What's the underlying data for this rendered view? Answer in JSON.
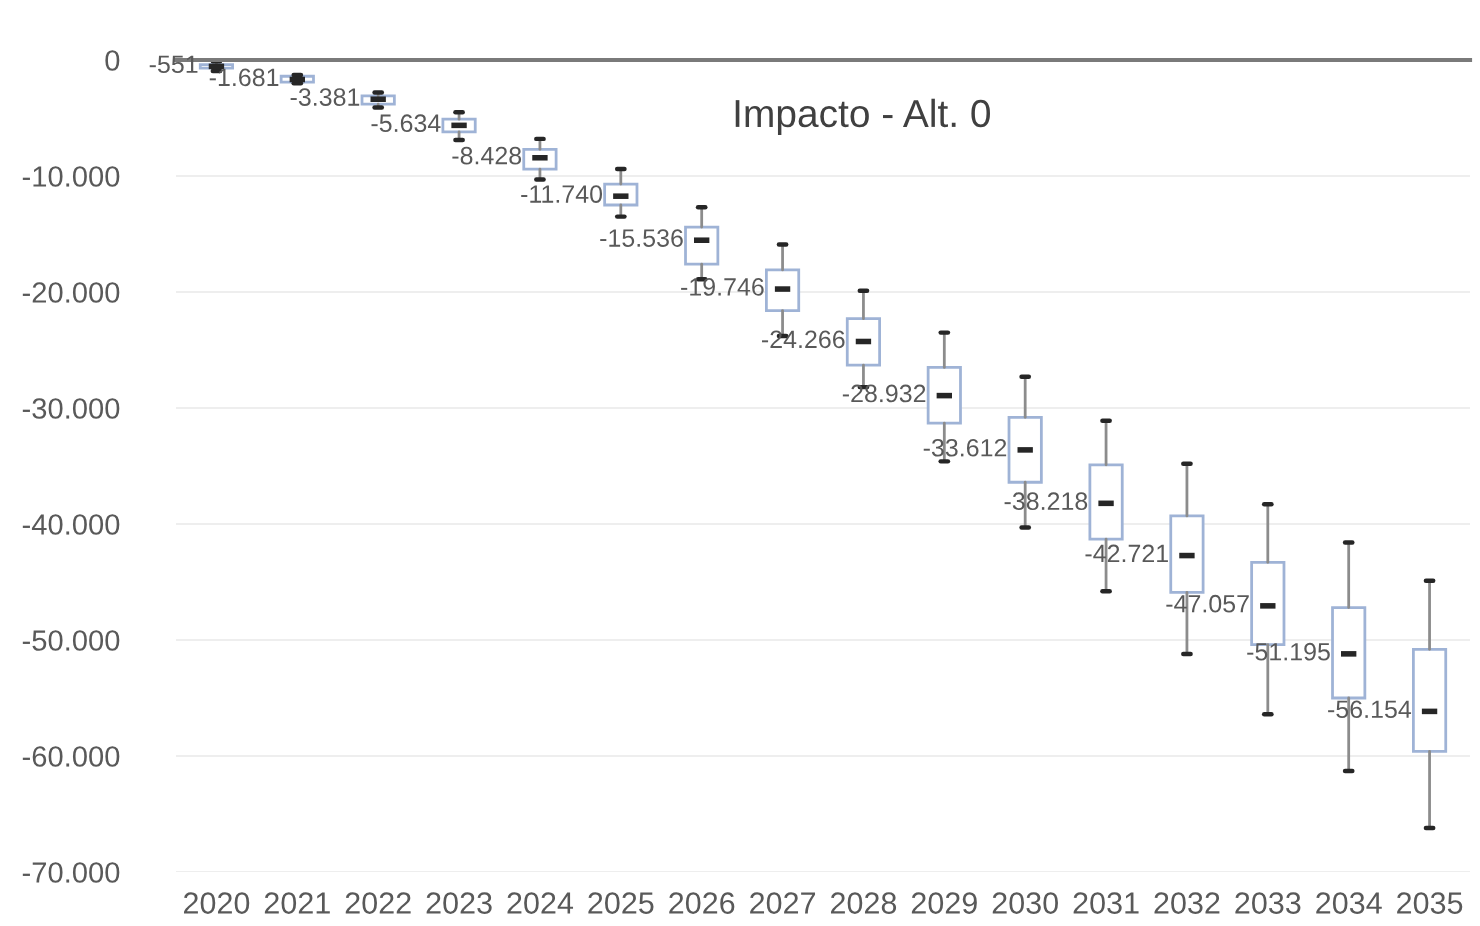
{
  "chart_data": {
    "type": "box",
    "title": "Impacto - Alt. 0",
    "categories": [
      "2020",
      "2021",
      "2022",
      "2023",
      "2024",
      "2025",
      "2026",
      "2027",
      "2028",
      "2029",
      "2030",
      "2031",
      "2032",
      "2033",
      "2034",
      "2035"
    ],
    "series": [
      {
        "color": "#9fb3d6",
        "boxes": [
          {
            "low": -950,
            "q1": -700,
            "median": -551,
            "q3": -400,
            "high": -100
          },
          {
            "low": -2000,
            "q1": -1900,
            "median": -1681,
            "q3": -1400,
            "high": -1300
          },
          {
            "low": -4100,
            "q1": -3800,
            "median": -3381,
            "q3": -3100,
            "high": -2800
          },
          {
            "low": -6900,
            "q1": -6200,
            "median": -5634,
            "q3": -5100,
            "high": -4500
          },
          {
            "low": -10300,
            "q1": -9400,
            "median": -8428,
            "q3": -7700,
            "high": -6800
          },
          {
            "low": -13500,
            "q1": -12500,
            "median": -11740,
            "q3": -10700,
            "high": -9400
          },
          {
            "low": -18900,
            "q1": -17600,
            "median": -15536,
            "q3": -14400,
            "high": -12700
          },
          {
            "low": -23800,
            "q1": -21600,
            "median": -19746,
            "q3": -18100,
            "high": -15900
          },
          {
            "low": -28200,
            "q1": -26300,
            "median": -24266,
            "q3": -22300,
            "high": -19900
          },
          {
            "low": -34600,
            "q1": -31300,
            "median": -28932,
            "q3": -26500,
            "high": -23500
          },
          {
            "low": -40300,
            "q1": -36400,
            "median": -33612,
            "q3": -30800,
            "high": -27300
          },
          {
            "low": -45800,
            "q1": -41300,
            "median": -38218,
            "q3": -34900,
            "high": -31100
          },
          {
            "low": -51200,
            "q1": -45900,
            "median": -42721,
            "q3": -39300,
            "high": -34800
          },
          {
            "low": -56400,
            "q1": -50400,
            "median": -47057,
            "q3": -43300,
            "high": -38300
          },
          {
            "low": -61300,
            "q1": -55000,
            "median": -51195,
            "q3": -47200,
            "high": -41600
          },
          {
            "low": -66200,
            "q1": -59600,
            "median": -56154,
            "q3": -50800,
            "high": -44900
          }
        ],
        "value_labels": [
          "-551",
          "-1.681",
          "-3.381",
          "-5.634",
          "-8.428",
          "-11.740",
          "-15.536",
          "-19.746",
          "-24.266",
          "-28.932",
          "-33.612",
          "-38.218",
          "-42.721",
          "-47.057",
          "-51.195",
          "-56.154"
        ]
      }
    ],
    "ylim": [
      -70000,
      0
    ],
    "yticks": [
      0,
      {
        "value": -10000,
        "label": "-10.000"
      },
      {
        "value": -20000,
        "label": "-20.000"
      },
      {
        "value": -30000,
        "label": "-30.000"
      },
      {
        "value": -40000,
        "label": "-40.000"
      },
      {
        "value": -50000,
        "label": "-50.000"
      },
      {
        "value": -60000,
        "label": "-60.000"
      },
      {
        "value": -70000,
        "label": "-70.000"
      }
    ],
    "grid": "y"
  }
}
